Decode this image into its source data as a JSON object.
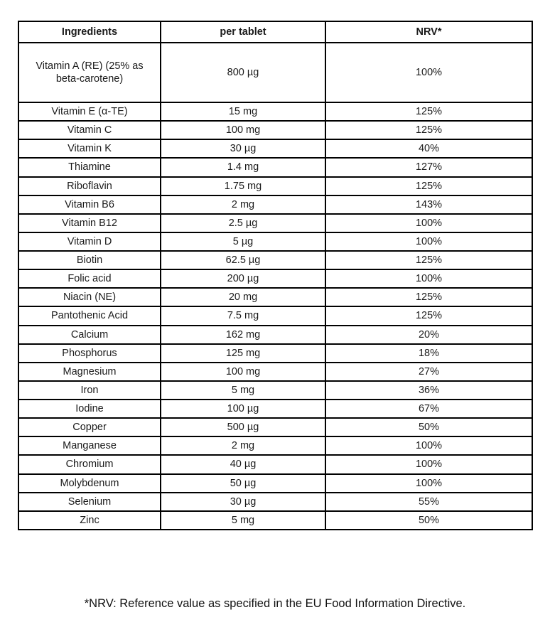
{
  "table": {
    "headers": [
      "Ingredients",
      "per tablet",
      "NRV*"
    ],
    "rows": [
      {
        "ingredient": "Vitamin A (RE) (25% as beta-carotene)",
        "per_tablet": "800 µg",
        "nrv": "100%"
      },
      {
        "ingredient": "Vitamin E (α-TE)",
        "per_tablet": "15 mg",
        "nrv": "125%"
      },
      {
        "ingredient": "Vitamin C",
        "per_tablet": "100 mg",
        "nrv": "125%"
      },
      {
        "ingredient": "Vitamin K",
        "per_tablet": "30 µg",
        "nrv": "40%"
      },
      {
        "ingredient": "Thiamine",
        "per_tablet": "1.4 mg",
        "nrv": "127%"
      },
      {
        "ingredient": "Riboflavin",
        "per_tablet": "1.75 mg",
        "nrv": "125%"
      },
      {
        "ingredient": "Vitamin B6",
        "per_tablet": "2 mg",
        "nrv": "143%"
      },
      {
        "ingredient": "Vitamin B12",
        "per_tablet": "2.5 µg",
        "nrv": "100%"
      },
      {
        "ingredient": "Vitamin D",
        "per_tablet": "5 µg",
        "nrv": "100%"
      },
      {
        "ingredient": "Biotin",
        "per_tablet": "62.5 µg",
        "nrv": "125%"
      },
      {
        "ingredient": "Folic acid",
        "per_tablet": "200 µg",
        "nrv": "100%"
      },
      {
        "ingredient": "Niacin (NE)",
        "per_tablet": "20 mg",
        "nrv": "125%"
      },
      {
        "ingredient": "Pantothenic Acid",
        "per_tablet": "7.5 mg",
        "nrv": "125%"
      },
      {
        "ingredient": "Calcium",
        "per_tablet": "162 mg",
        "nrv": "20%"
      },
      {
        "ingredient": "Phosphorus",
        "per_tablet": "125 mg",
        "nrv": "18%"
      },
      {
        "ingredient": "Magnesium",
        "per_tablet": "100 mg",
        "nrv": "27%"
      },
      {
        "ingredient": "Iron",
        "per_tablet": "5 mg",
        "nrv": "36%"
      },
      {
        "ingredient": "Iodine",
        "per_tablet": "100 µg",
        "nrv": "67%"
      },
      {
        "ingredient": "Copper",
        "per_tablet": "500 µg",
        "nrv": "50%"
      },
      {
        "ingredient": "Manganese",
        "per_tablet": "2 mg",
        "nrv": "100%"
      },
      {
        "ingredient": "Chromium",
        "per_tablet": "40 µg",
        "nrv": "100%"
      },
      {
        "ingredient": "Molybdenum",
        "per_tablet": "50 µg",
        "nrv": "100%"
      },
      {
        "ingredient": "Selenium",
        "per_tablet": "30 µg",
        "nrv": "55%"
      },
      {
        "ingredient": "Zinc",
        "per_tablet": "5 mg",
        "nrv": "50%"
      }
    ]
  },
  "footnote": "*NRV: Reference value as specified in the EU Food Information Directive.",
  "colors": {
    "border": "#000000",
    "text": "#1a1a1a",
    "background": "#ffffff"
  }
}
